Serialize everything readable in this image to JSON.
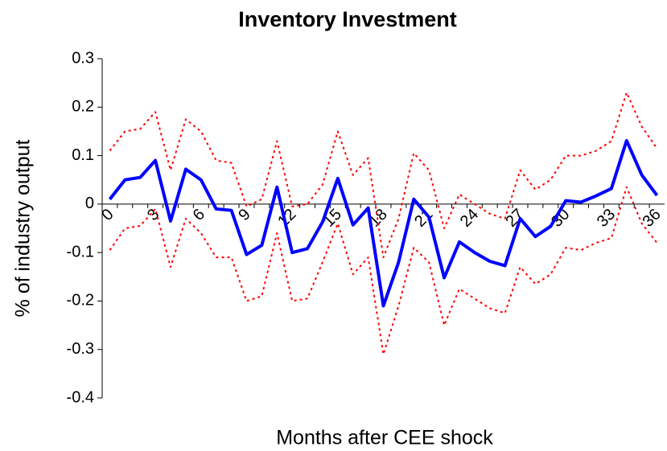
{
  "chart_data": {
    "type": "line",
    "title": "Inventory Investment",
    "x_label": "Months after CEE shock",
    "y_label": "% of industry output",
    "categories": [
      "0",
      null,
      null,
      "3",
      null,
      null,
      "6",
      null,
      null,
      "9",
      null,
      null,
      "12",
      null,
      null,
      "15",
      null,
      null,
      "18",
      null,
      null,
      "21",
      null,
      null,
      "24",
      null,
      null,
      "27",
      null,
      null,
      "30",
      null,
      null,
      "33",
      null,
      null,
      "36"
    ],
    "series": [
      {
        "color": "#ff0000",
        "style": "dotted",
        "values": [
          0.11,
          0.15,
          0.155,
          0.19,
          0.07,
          0.175,
          0.15,
          0.09,
          0.085,
          -0.005,
          0.01,
          0.13,
          -0.005,
          0.0,
          0.04,
          0.15,
          0.06,
          0.095,
          -0.11,
          -0.03,
          0.105,
          0.07,
          -0.05,
          0.02,
          0.0,
          -0.02,
          -0.03,
          0.07,
          0.03,
          0.05,
          0.1,
          0.1,
          0.11,
          0.13,
          0.23,
          0.16,
          0.115
        ]
      },
      {
        "color": "#ff0000",
        "style": "dotted",
        "values": [
          -0.095,
          -0.05,
          -0.045,
          -0.01,
          -0.13,
          -0.03,
          -0.06,
          -0.11,
          -0.11,
          -0.2,
          -0.19,
          -0.06,
          -0.2,
          -0.195,
          -0.12,
          -0.04,
          -0.145,
          -0.11,
          -0.31,
          -0.21,
          -0.09,
          -0.12,
          -0.25,
          -0.175,
          -0.195,
          -0.215,
          -0.225,
          -0.13,
          -0.165,
          -0.145,
          -0.09,
          -0.095,
          -0.08,
          -0.07,
          0.035,
          -0.04,
          -0.08
        ]
      },
      {
        "color": "#0000ff",
        "style": "solid",
        "values": [
          0.01,
          0.05,
          0.055,
          0.09,
          -0.035,
          0.072,
          0.05,
          -0.01,
          -0.013,
          -0.104,
          -0.085,
          0.035,
          -0.1,
          -0.092,
          -0.037,
          0.053,
          -0.043,
          -0.008,
          -0.21,
          -0.12,
          0.01,
          -0.027,
          -0.152,
          -0.078,
          -0.1,
          -0.118,
          -0.127,
          -0.03,
          -0.067,
          -0.046,
          0.007,
          0.004,
          0.017,
          0.032,
          0.131,
          0.06,
          0.018
        ]
      }
    ],
    "ylim": [
      -0.4,
      0.3
    ],
    "yticks": [
      -0.4,
      -0.3,
      -0.2,
      -0.1,
      0,
      0.1,
      0.2,
      0.3
    ],
    "grid": false
  }
}
